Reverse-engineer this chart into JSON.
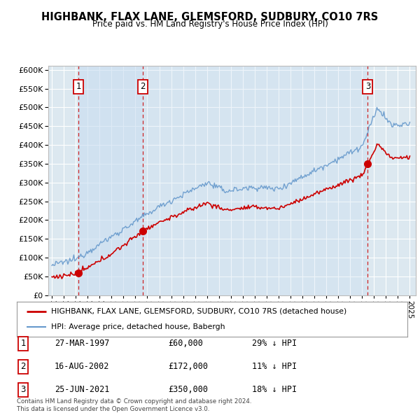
{
  "title": "HIGHBANK, FLAX LANE, GLEMSFORD, SUDBURY, CO10 7RS",
  "subtitle": "Price paid vs. HM Land Registry's House Price Index (HPI)",
  "sales": [
    {
      "label": "1",
      "date_str": "27-MAR-1997",
      "date_x": 1997.23,
      "price": 60000
    },
    {
      "label": "2",
      "date_str": "16-AUG-2002",
      "date_x": 2002.62,
      "price": 172000
    },
    {
      "label": "3",
      "date_str": "25-JUN-2021",
      "date_x": 2021.48,
      "price": 350000
    }
  ],
  "sale_annotations": [
    {
      "label": "1",
      "date_str": "27-MAR-1997",
      "price_str": "£60,000",
      "hpi_str": "29% ↓ HPI"
    },
    {
      "label": "2",
      "date_str": "16-AUG-2002",
      "price_str": "£172,000",
      "hpi_str": "11% ↓ HPI"
    },
    {
      "label": "3",
      "date_str": "25-JUN-2021",
      "price_str": "£350,000",
      "hpi_str": "18% ↓ HPI"
    }
  ],
  "legend_line1": "HIGHBANK, FLAX LANE, GLEMSFORD, SUDBURY, CO10 7RS (detached house)",
  "legend_line2": "HPI: Average price, detached house, Babergh",
  "ylabel_ticks": [
    0,
    50000,
    100000,
    150000,
    200000,
    250000,
    300000,
    350000,
    400000,
    450000,
    500000,
    550000,
    600000
  ],
  "ylim": [
    0,
    610000
  ],
  "xlim_start": 1994.7,
  "xlim_end": 2025.5,
  "plot_bg_color": "#dce8f0",
  "shade_color": "#c8ddf0",
  "grid_color": "#ffffff",
  "red_color": "#cc0000",
  "blue_color": "#6699cc",
  "footer": "Contains HM Land Registry data © Crown copyright and database right 2024.\nThis data is licensed under the Open Government Licence v3.0."
}
